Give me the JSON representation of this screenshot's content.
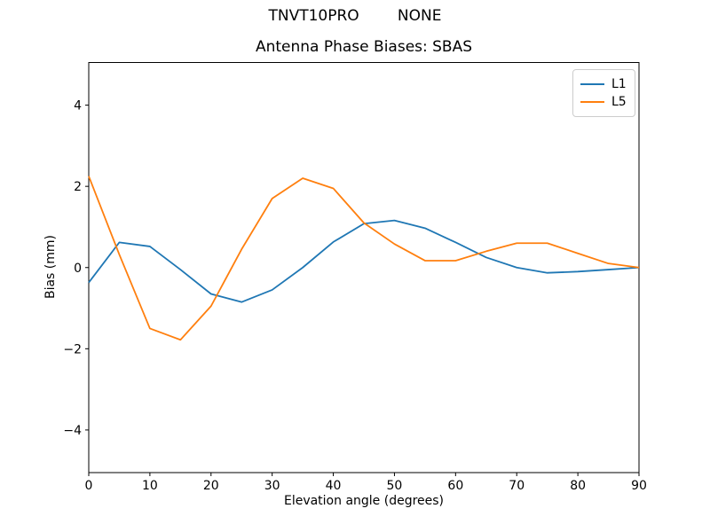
{
  "figure": {
    "suptitle": "TNVT10PRO        NONE",
    "title": "Antenna Phase Biases: SBAS",
    "xlabel": "Elevation angle (degrees)",
    "ylabel": "Bias (mm)"
  },
  "legend": {
    "entries": [
      {
        "label": "L1",
        "color": "#1f77b4"
      },
      {
        "label": "L5",
        "color": "#ff7f0e"
      }
    ]
  },
  "chart_data": {
    "type": "line",
    "title": "Antenna Phase Biases: SBAS",
    "xlabel": "Elevation angle (degrees)",
    "ylabel": "Bias (mm)",
    "x": [
      0,
      5,
      10,
      15,
      20,
      25,
      30,
      35,
      40,
      45,
      50,
      55,
      60,
      65,
      70,
      75,
      80,
      85,
      90
    ],
    "series": [
      {
        "name": "L1",
        "color": "#1f77b4",
        "values": [
          -0.37,
          0.62,
          0.52,
          -0.05,
          -0.65,
          -0.85,
          -0.55,
          0.0,
          0.63,
          1.08,
          1.16,
          0.97,
          0.62,
          0.25,
          0.0,
          -0.13,
          -0.1,
          -0.05,
          0.0
        ]
      },
      {
        "name": "L5",
        "color": "#ff7f0e",
        "values": [
          2.25,
          0.32,
          -1.5,
          -1.78,
          -0.95,
          0.45,
          1.7,
          2.2,
          1.95,
          1.1,
          0.58,
          0.17,
          0.17,
          0.4,
          0.6,
          0.6,
          0.35,
          0.1,
          0.0
        ]
      }
    ],
    "xlim": [
      0,
      90
    ],
    "ylim": [
      -5.05,
      5.05
    ],
    "xticks": [
      0,
      10,
      20,
      30,
      40,
      50,
      60,
      70,
      80,
      90
    ],
    "yticks": [
      -4,
      -2,
      0,
      2,
      4
    ],
    "grid": false,
    "legend_position": "upper right"
  }
}
